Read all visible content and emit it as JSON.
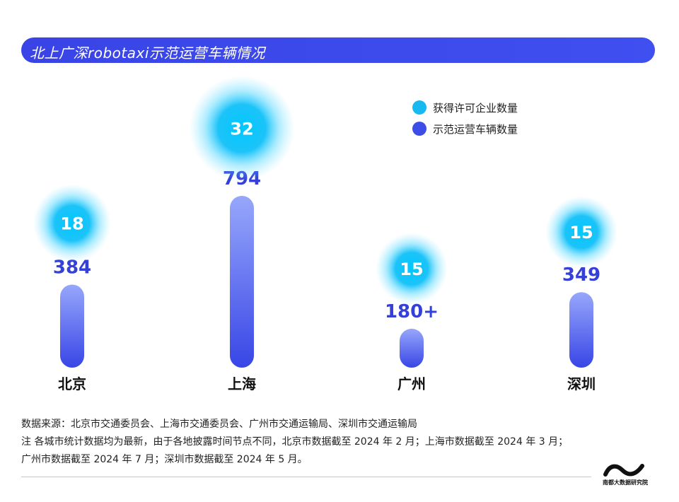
{
  "title": "北上广深robotaxi示范运营车辆情况",
  "legend": [
    {
      "label": "获得许可企业数量",
      "color": "#18b8f0"
    },
    {
      "label": "示范运营车辆数量",
      "color": "#3d4de8"
    }
  ],
  "chart_data": {
    "type": "bar",
    "title": "北上广深robotaxi示范运营车辆情况",
    "categories": [
      "北京",
      "上海",
      "广州",
      "深圳"
    ],
    "series": [
      {
        "name": "示范运营车辆数量",
        "values": [
          384,
          794,
          180,
          349
        ],
        "labels": [
          "384",
          "794",
          "180+",
          "349"
        ]
      },
      {
        "name": "获得许可企业数量",
        "values": [
          18,
          32,
          15,
          15
        ],
        "labels": [
          "18",
          "32",
          "15",
          "15"
        ]
      }
    ],
    "xlabel": "",
    "ylabel": "",
    "ylim": [
      0,
      800
    ],
    "grid": false,
    "legend_position": "top-right"
  },
  "notes": {
    "source": "数据来源：北京市交通委员会、上海市交通委员会、广州市交通运输局、深圳市交通运输局",
    "note_line1": "注 各城市统计数据均为最新，由于各地披露时间节点不同，北京市数据截至 2024 年 2 月；上海市数据截至 2024 年 3 月；",
    "note_line2": "广州市数据截至 2024 年 7 月；深圳市数据截至 2024 年 5 月。"
  },
  "logo": {
    "text": "南都大数据研究院",
    "icon": "wave-logo-icon"
  }
}
